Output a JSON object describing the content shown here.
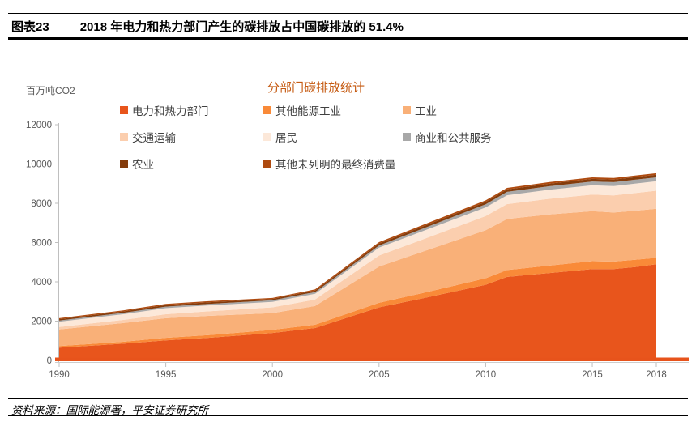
{
  "header": {
    "tag": "图表23",
    "title": "2018 年电力和热力部门产生的碳排放占中国碳排放的 51.4%"
  },
  "chart_data": {
    "type": "area",
    "stacked": true,
    "title": "分部门碳排放统计",
    "ylabel": "百万吨CO2",
    "xlabel": "",
    "x": [
      1990,
      1993,
      1995,
      1997,
      2000,
      2002,
      2005,
      2007,
      2010,
      2011,
      2013,
      2015,
      2016,
      2017,
      2018
    ],
    "x_ticks": [
      1990,
      1995,
      2000,
      2005,
      2010,
      2015,
      2018
    ],
    "ylim": [
      0,
      12000
    ],
    "y_ticks": [
      0,
      2000,
      4000,
      6000,
      8000,
      10000,
      12000
    ],
    "grid": false,
    "legend_position": "top",
    "title_color": "#C55A11",
    "axis_line_color": "#E7531B",
    "series": [
      {
        "name": "电力和热力部门",
        "color": "#E8551C",
        "values": [
          650,
          850,
          1020,
          1150,
          1400,
          1650,
          2700,
          3150,
          3850,
          4250,
          4450,
          4650,
          4650,
          4750,
          4900
        ]
      },
      {
        "name": "其他能源工业",
        "color": "#F98A38",
        "values": [
          80,
          100,
          130,
          140,
          160,
          170,
          230,
          270,
          330,
          350,
          380,
          400,
          380,
          370,
          320
        ]
      },
      {
        "name": "工业",
        "color": "#F9B078",
        "values": [
          850,
          950,
          1000,
          980,
          850,
          950,
          1850,
          2100,
          2450,
          2600,
          2600,
          2550,
          2500,
          2500,
          2500
        ]
      },
      {
        "name": "交通运输",
        "color": "#FBCEAE",
        "values": [
          120,
          160,
          200,
          230,
          290,
          330,
          560,
          620,
          720,
          760,
          800,
          840,
          870,
          900,
          920
        ]
      },
      {
        "name": "居民",
        "color": "#FCE8D9",
        "values": [
          270,
          290,
          310,
          300,
          280,
          290,
          400,
          420,
          440,
          450,
          460,
          480,
          480,
          480,
          480
        ]
      },
      {
        "name": "商业和公共服务",
        "color": "#A8A8A8",
        "values": [
          60,
          70,
          80,
          80,
          80,
          90,
          110,
          130,
          160,
          170,
          180,
          190,
          195,
          200,
          200
        ]
      },
      {
        "name": "农业",
        "color": "#843C0C",
        "values": [
          70,
          75,
          80,
          80,
          70,
          80,
          100,
          110,
          120,
          125,
          130,
          130,
          130,
          130,
          130
        ]
      },
      {
        "name": "其他未列明的最终消费量",
        "color": "#AE4A0F",
        "values": [
          50,
          55,
          60,
          55,
          50,
          55,
          70,
          75,
          80,
          80,
          80,
          80,
          80,
          80,
          80
        ]
      }
    ]
  },
  "footer": {
    "source": "资料来源：国际能源署，平安证券研究所"
  }
}
